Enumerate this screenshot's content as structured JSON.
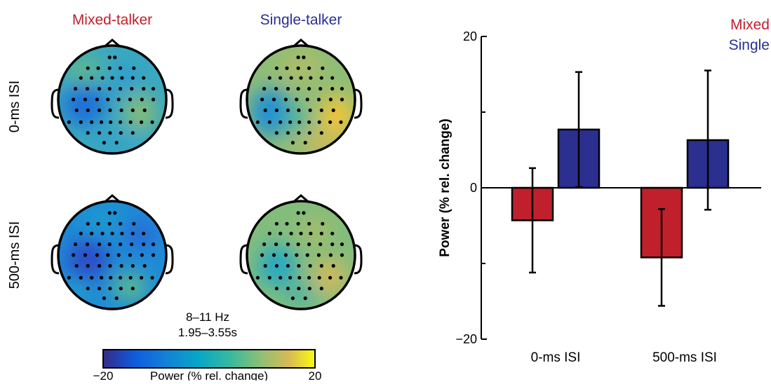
{
  "colors": {
    "mixed": "#c0202b",
    "single": "#2b2f8f",
    "head_outline": "#000000"
  },
  "topomaps": {
    "column_titles": [
      "Mixed-talker",
      "Single-talker"
    ],
    "row_titles": [
      "0-ms ISI",
      "500-ms ISI"
    ],
    "band_label": "8–11 Hz",
    "time_label": "1.95–3.55s",
    "colorbar": {
      "label": "Power (% rel. change)",
      "min_label": "−20",
      "max_label": "20",
      "range": [
        -20,
        20
      ],
      "colormap": "parula"
    }
  },
  "chart_data": {
    "type": "bar",
    "categories": [
      "0-ms ISI",
      "500-ms ISI"
    ],
    "series": [
      {
        "name": "Mixed",
        "values": [
          -4.3,
          -9.2
        ],
        "errors": [
          6.9,
          6.4
        ]
      },
      {
        "name": "Single",
        "values": [
          7.7,
          6.3
        ],
        "errors": [
          7.6,
          9.2
        ]
      }
    ],
    "ylabel": "Power (% rel. change)",
    "xlabel": "",
    "ylim": [
      -20,
      20
    ],
    "yticks": [
      -20,
      0,
      20
    ],
    "ytick_labels": [
      "−20",
      "0",
      "20"
    ],
    "grid": false,
    "legend_position": "top-right"
  }
}
